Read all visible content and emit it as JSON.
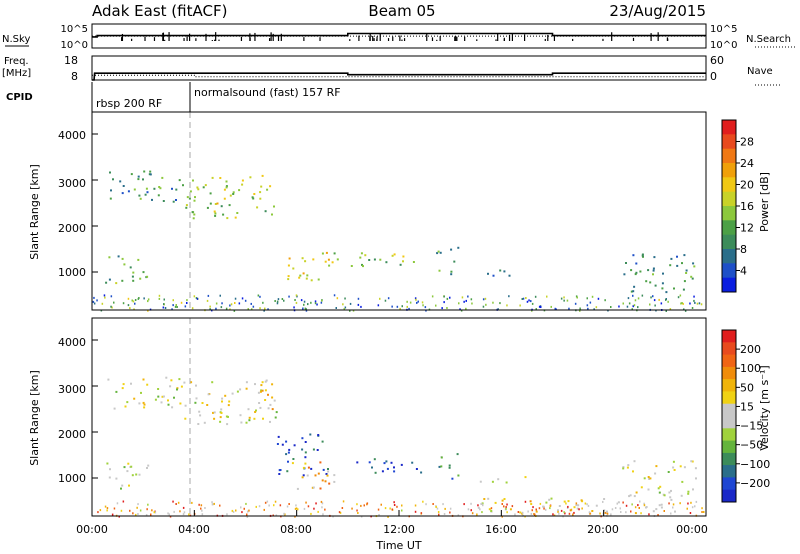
{
  "header": {
    "station": "Adak East (fitACF)",
    "beam": "Beam 05",
    "date": "23/Aug/2015"
  },
  "noise_panel": {
    "left_label": "N.Sky",
    "right_label": "N.Search",
    "left_ticks": [
      "10^5",
      "10^0"
    ],
    "right_ticks": [
      "10^5",
      "10^0"
    ]
  },
  "freq_panel": {
    "left_label_line1": "Freq.",
    "left_label_line2": "[MHz]",
    "left_ticks": [
      "18",
      "8"
    ],
    "right_label": "Nave",
    "right_ticks": [
      "60",
      "0"
    ],
    "cpid_label": "CPID",
    "cpid_segments": [
      {
        "label": "rbsp 200 RF",
        "start_hour": 0
      },
      {
        "label": "normalsound (fast) 157 RF",
        "start_hour": 4
      }
    ]
  },
  "x_axis": {
    "label": "Time UT",
    "ticks": [
      "00:00",
      "04:00",
      "08:00",
      "12:00",
      "16:00",
      "20:00",
      "00:00"
    ]
  },
  "power_panel": {
    "ylabel": "Slant Range [km]",
    "yticks": [
      "4000",
      "3000",
      "2000",
      "1000"
    ],
    "colorbar_label": "Power [dB]",
    "colorbar_ticks": [
      "28",
      "24",
      "20",
      "16",
      "12",
      "8",
      "4"
    ],
    "colorbar_colors": [
      "#0a1ee0",
      "#1e50c8",
      "#2a6e8a",
      "#3c8c5a",
      "#4ca046",
      "#8cc83c",
      "#c8d228",
      "#f0c814",
      "#f0a00a",
      "#f07814",
      "#e84a1e",
      "#e01e1e"
    ]
  },
  "velocity_panel": {
    "ylabel": "Slant Range [km]",
    "yticks": [
      "4000",
      "3000",
      "2000",
      "1000"
    ],
    "colorbar_label": "Velocity [m s⁻¹]",
    "colorbar_ticks": [
      "200",
      "100",
      "50",
      "15",
      "−15",
      "−50",
      "−100",
      "−200"
    ],
    "colorbar_colors": [
      "#1a28c8",
      "#1e46d2",
      "#2a6e8a",
      "#3c8c5a",
      "#64b43c",
      "#a0d23c",
      "#c8c8c8",
      "#c8c8c8",
      "#f0d214",
      "#f0b40a",
      "#f08c0a",
      "#f06414",
      "#e84a1e",
      "#e01e1e"
    ]
  },
  "chart_data": [
    {
      "type": "line",
      "title": "",
      "xlabel": "",
      "ylabel": "N.Sky",
      "x_range_hours": [
        0,
        24
      ],
      "y_scale": "log",
      "ylim": [
        1,
        100000
      ],
      "series": [
        {
          "name": "N.Sky",
          "hours": [
            0,
            0.2,
            4,
            10,
            18,
            24
          ],
          "values": [
            200,
            400,
            400,
            1200,
            400,
            400
          ]
        },
        {
          "name": "N.Search",
          "hours": [
            0,
            10,
            18,
            24
          ],
          "values": [
            300,
            300,
            300,
            300
          ]
        }
      ]
    },
    {
      "type": "line",
      "title": "",
      "ylabel": "Freq. [MHz]",
      "x_range_hours": [
        0,
        24
      ],
      "ylim": [
        8,
        18
      ],
      "series": [
        {
          "name": "Freq.",
          "hours": [
            0,
            0.1,
            10,
            18,
            24
          ],
          "values": [
            8,
            11.1,
            10.4,
            11.1,
            11.1
          ]
        },
        {
          "name": "Nave",
          "hours": [
            0,
            4,
            24
          ],
          "values": [
            13,
            9,
            9
          ]
        }
      ],
      "cpid": [
        {
          "label": "rbsp 200 RF",
          "start_hour": 0,
          "end_hour": 4
        },
        {
          "label": "normalsound (fast) 157 RF",
          "start_hour": 4,
          "end_hour": 24
        }
      ]
    },
    {
      "type": "heatmap",
      "title": "",
      "xlabel": "Time UT",
      "ylabel": "Slant Range [km]",
      "colorbar": "Power [dB]",
      "x_range_hours": [
        0,
        24
      ],
      "ylim_km": [
        180,
        4600
      ],
      "clim": [
        0,
        32
      ],
      "echo_regions": [
        {
          "t0": 0.6,
          "t1": 3.6,
          "r0": 2600,
          "r1": 3300,
          "value": 10
        },
        {
          "t0": 3.6,
          "t1": 7.2,
          "r0": 2250,
          "r1": 3200,
          "value": 16
        },
        {
          "t0": 0.5,
          "t1": 2.2,
          "r0": 800,
          "r1": 1400,
          "value": 12
        },
        {
          "t0": 7.6,
          "t1": 9.6,
          "r0": 800,
          "r1": 1500,
          "value": 18
        },
        {
          "t0": 10.1,
          "t1": 12.9,
          "r0": 1150,
          "r1": 1500,
          "value": 14
        },
        {
          "t0": 13.4,
          "t1": 14.3,
          "r0": 1000,
          "r1": 1600,
          "value": 10
        },
        {
          "t0": 15.1,
          "t1": 17.0,
          "r0": 950,
          "r1": 1100,
          "value": 8
        },
        {
          "t0": 20.7,
          "t1": 23.6,
          "r0": 600,
          "r1": 1450,
          "value": 10
        }
      ]
    },
    {
      "type": "heatmap",
      "title": "",
      "xlabel": "Time UT",
      "ylabel": "Slant Range [km]",
      "colorbar": "Velocity [m s⁻¹]",
      "x_range_hours": [
        0,
        24
      ],
      "ylim_km": [
        180,
        4600
      ],
      "clim": [
        -250,
        250
      ],
      "echo_regions": [
        {
          "t0": 0.6,
          "t1": 3.6,
          "r0": 2600,
          "r1": 3300,
          "value": 0
        },
        {
          "t0": 3.6,
          "t1": 7.2,
          "r0": 2250,
          "r1": 3200,
          "value": 0
        },
        {
          "t0": 6.5,
          "t1": 7.2,
          "r0": 2400,
          "r1": 3400,
          "value": -50
        },
        {
          "t0": 0.5,
          "t1": 2.2,
          "r0": 800,
          "r1": 1400,
          "value": 0
        },
        {
          "t0": 7.2,
          "t1": 9.2,
          "r0": 1100,
          "r1": 2050,
          "value": 200
        },
        {
          "t0": 7.6,
          "t1": 9.6,
          "r0": 800,
          "r1": 1400,
          "value": -100
        },
        {
          "t0": 10.1,
          "t1": 12.9,
          "r0": 1150,
          "r1": 1500,
          "value": 200
        },
        {
          "t0": 13.4,
          "t1": 14.3,
          "r0": 1000,
          "r1": 1600,
          "value": 100
        },
        {
          "t0": 15.1,
          "t1": 17.0,
          "r0": 950,
          "r1": 1100,
          "value": -30
        },
        {
          "t0": 14.5,
          "t1": 23.0,
          "r0": 250,
          "r1": 600,
          "value": -40
        },
        {
          "t0": 20.7,
          "t1": 23.6,
          "r0": 600,
          "r1": 1450,
          "value": 0
        }
      ]
    }
  ]
}
